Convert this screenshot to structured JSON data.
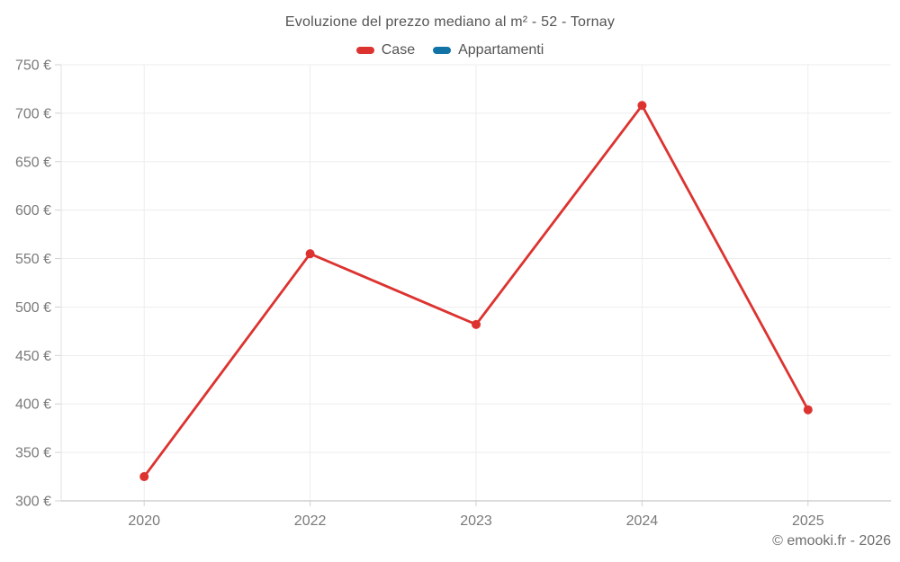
{
  "header": {
    "title": "Evoluzione del prezzo mediano al m² - 52 - Tornay"
  },
  "legend": {
    "items": [
      {
        "label": "Case",
        "color": "#dc3330"
      },
      {
        "label": "Appartamenti",
        "color": "#1173a6"
      }
    ]
  },
  "footer": {
    "credit": "© emooki.fr - 2026"
  },
  "colors": {
    "case_red": "#dc3330",
    "appartamenti_blue": "#1173a6",
    "gridline": "#ededed",
    "axis_line": "#c8c8c8",
    "tick_mark": "#d2d2d2",
    "tick_label": "#7a7a7a",
    "title_text": "#545454"
  },
  "chart_data": {
    "type": "line",
    "title": "Evoluzione del prezzo mediano al m² - 52 - Tornay",
    "xlabel": "",
    "ylabel": "",
    "categories": [
      "2020",
      "2022",
      "2023",
      "2024",
      "2025"
    ],
    "series": [
      {
        "name": "Case",
        "color": "#dc3330",
        "values": [
          325,
          555,
          482,
          708,
          394
        ]
      },
      {
        "name": "Appartamenti",
        "color": "#1173a6",
        "values": []
      }
    ],
    "ylim": [
      300,
      750
    ],
    "y_tick_step": 50,
    "y_ticks": [
      "300 €",
      "350 €",
      "400 €",
      "450 €",
      "500 €",
      "550 €",
      "600 €",
      "650 €",
      "700 €",
      "750 €"
    ],
    "grid": true,
    "legend_position": "top",
    "point_radius": 5,
    "line_width": 2.8
  }
}
